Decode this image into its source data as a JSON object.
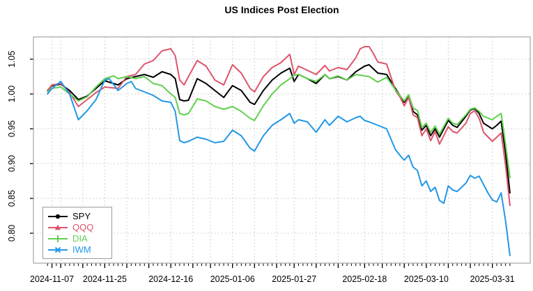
{
  "page": {
    "title": "US Indices Post Election"
  },
  "chart_data": {
    "type": "line",
    "title": "US Indices Post Election",
    "x_axis": {
      "unit": "trading days (index 0 = 2024-11-06)",
      "xlim": [
        -3.2,
        109.6
      ],
      "total_days": 105,
      "major_ticks": [
        {
          "day": 1,
          "label": "2024-11-07"
        },
        {
          "day": 13,
          "label": "2024-11-25"
        },
        {
          "day": 28,
          "label": "2024-12-16"
        },
        {
          "day": 42,
          "label": "2025-01-06"
        },
        {
          "day": 56,
          "label": "2025-01-27"
        },
        {
          "day": 72,
          "label": "2025-02-18"
        },
        {
          "day": 86,
          "label": "2025-03-10"
        },
        {
          "day": 101,
          "label": "2025-03-31"
        }
      ],
      "week_tick_days": [
        1,
        3,
        8,
        13,
        18,
        23,
        28,
        33,
        37,
        42,
        47,
        52,
        56,
        61,
        66,
        72,
        76,
        81,
        86,
        91,
        96,
        101
      ]
    },
    "y_axis": {
      "ylim": [
        0.757,
        1.082
      ],
      "ticks": [
        0.8,
        0.85,
        0.9,
        0.95,
        1.0,
        1.05
      ],
      "tick_labels": [
        "0.80",
        "0.85",
        "0.90",
        "0.95",
        "1.00",
        "1.05"
      ]
    },
    "grid": {
      "on": true,
      "color": "#d3d3d3",
      "dash": "2,3"
    },
    "legend_position": "bottom-left",
    "series": [
      {
        "name": "SPY",
        "color": "#000000",
        "marker": "circle",
        "points": [
          [
            0,
            1.005
          ],
          [
            1,
            1.012
          ],
          [
            3,
            1.014
          ],
          [
            5,
            1.005
          ],
          [
            7,
            0.992
          ],
          [
            9,
            0.997
          ],
          [
            11,
            1.008
          ],
          [
            13,
            1.019
          ],
          [
            16,
            1.013
          ],
          [
            18,
            1.022
          ],
          [
            20,
            1.025
          ],
          [
            22,
            1.028
          ],
          [
            24,
            1.024
          ],
          [
            26,
            1.032
          ],
          [
            28,
            1.028
          ],
          [
            29,
            1.022
          ],
          [
            30,
            0.992
          ],
          [
            31,
            0.99
          ],
          [
            32,
            0.991
          ],
          [
            34,
            1.022
          ],
          [
            36,
            1.015
          ],
          [
            38,
            1.005
          ],
          [
            40,
            0.995
          ],
          [
            42,
            1.012
          ],
          [
            44,
            1.005
          ],
          [
            46,
            0.988
          ],
          [
            47,
            0.985
          ],
          [
            49,
            1.005
          ],
          [
            51,
            1.02
          ],
          [
            53,
            1.03
          ],
          [
            55,
            1.037
          ],
          [
            56,
            1.018
          ],
          [
            57,
            1.028
          ],
          [
            59,
            1.022
          ],
          [
            61,
            1.015
          ],
          [
            63,
            1.028
          ],
          [
            64,
            1.022
          ],
          [
            66,
            1.025
          ],
          [
            68,
            1.02
          ],
          [
            70,
            1.032
          ],
          [
            72,
            1.04
          ],
          [
            73,
            1.042
          ],
          [
            75,
            1.03
          ],
          [
            77,
            1.028
          ],
          [
            79,
            1.008
          ],
          [
            80,
            0.998
          ],
          [
            81,
            0.988
          ],
          [
            82,
            0.998
          ],
          [
            83,
            0.975
          ],
          [
            84,
            0.97
          ],
          [
            85,
            0.948
          ],
          [
            86,
            0.955
          ],
          [
            87,
            0.94
          ],
          [
            88,
            0.95
          ],
          [
            89,
            0.938
          ],
          [
            91,
            0.962
          ],
          [
            92,
            0.955
          ],
          [
            93,
            0.952
          ],
          [
            95,
            0.968
          ],
          [
            96,
            0.977
          ],
          [
            97,
            0.979
          ],
          [
            98,
            0.972
          ],
          [
            99,
            0.958
          ],
          [
            101,
            0.95
          ],
          [
            102,
            0.955
          ],
          [
            103,
            0.961
          ],
          [
            104,
            0.915
          ],
          [
            105,
            0.858
          ]
        ]
      },
      {
        "name": "QQQ",
        "color": "#DF536B",
        "marker": "triangle",
        "points": [
          [
            0,
            1.005
          ],
          [
            1,
            1.013
          ],
          [
            3,
            1.015
          ],
          [
            5,
            1.002
          ],
          [
            7,
            0.982
          ],
          [
            9,
            0.992
          ],
          [
            11,
            1.002
          ],
          [
            13,
            1.01
          ],
          [
            16,
            1.008
          ],
          [
            18,
            1.025
          ],
          [
            20,
            1.028
          ],
          [
            22,
            1.043
          ],
          [
            24,
            1.048
          ],
          [
            26,
            1.062
          ],
          [
            28,
            1.065
          ],
          [
            29,
            1.055
          ],
          [
            30,
            1.02
          ],
          [
            31,
            1.013
          ],
          [
            32,
            1.025
          ],
          [
            34,
            1.048
          ],
          [
            36,
            1.04
          ],
          [
            38,
            1.02
          ],
          [
            40,
            1.013
          ],
          [
            42,
            1.042
          ],
          [
            44,
            1.03
          ],
          [
            46,
            1.008
          ],
          [
            47,
            1.003
          ],
          [
            49,
            1.025
          ],
          [
            51,
            1.038
          ],
          [
            53,
            1.045
          ],
          [
            55,
            1.057
          ],
          [
            56,
            1.028
          ],
          [
            57,
            1.04
          ],
          [
            59,
            1.034
          ],
          [
            61,
            1.028
          ],
          [
            63,
            1.041
          ],
          [
            64,
            1.033
          ],
          [
            66,
            1.038
          ],
          [
            68,
            1.035
          ],
          [
            70,
            1.052
          ],
          [
            71,
            1.065
          ],
          [
            72,
            1.068
          ],
          [
            73,
            1.068
          ],
          [
            74,
            1.058
          ],
          [
            75,
            1.046
          ],
          [
            77,
            1.043
          ],
          [
            79,
            1.005
          ],
          [
            80,
            0.996
          ],
          [
            81,
            0.983
          ],
          [
            82,
            0.995
          ],
          [
            83,
            0.97
          ],
          [
            84,
            0.966
          ],
          [
            85,
            0.94
          ],
          [
            86,
            0.95
          ],
          [
            87,
            0.933
          ],
          [
            88,
            0.946
          ],
          [
            89,
            0.928
          ],
          [
            91,
            0.953
          ],
          [
            92,
            0.946
          ],
          [
            93,
            0.944
          ],
          [
            95,
            0.958
          ],
          [
            96,
            0.972
          ],
          [
            97,
            0.976
          ],
          [
            98,
            0.965
          ],
          [
            99,
            0.945
          ],
          [
            101,
            0.932
          ],
          [
            102,
            0.938
          ],
          [
            103,
            0.944
          ],
          [
            104,
            0.898
          ],
          [
            105,
            0.84
          ]
        ]
      },
      {
        "name": "DIA",
        "color": "#61D04F",
        "marker": "plus",
        "points": [
          [
            0,
            1.003
          ],
          [
            1,
            1.008
          ],
          [
            3,
            1.01
          ],
          [
            5,
            1.0
          ],
          [
            7,
            0.99
          ],
          [
            9,
            0.996
          ],
          [
            11,
            1.01
          ],
          [
            13,
            1.022
          ],
          [
            15,
            1.026
          ],
          [
            16,
            1.022
          ],
          [
            18,
            1.025
          ],
          [
            20,
            1.022
          ],
          [
            22,
            1.025
          ],
          [
            24,
            1.015
          ],
          [
            26,
            1.012
          ],
          [
            28,
            1.0
          ],
          [
            29,
            0.995
          ],
          [
            30,
            0.972
          ],
          [
            31,
            0.97
          ],
          [
            32,
            0.972
          ],
          [
            34,
            0.993
          ],
          [
            36,
            0.99
          ],
          [
            38,
            0.982
          ],
          [
            40,
            0.978
          ],
          [
            42,
            0.982
          ],
          [
            44,
            0.975
          ],
          [
            46,
            0.965
          ],
          [
            47,
            0.962
          ],
          [
            49,
            0.983
          ],
          [
            51,
            1.0
          ],
          [
            53,
            1.013
          ],
          [
            55,
            1.022
          ],
          [
            56,
            1.027
          ],
          [
            57,
            1.028
          ],
          [
            59,
            1.022
          ],
          [
            61,
            1.018
          ],
          [
            63,
            1.028
          ],
          [
            64,
            1.022
          ],
          [
            66,
            1.026
          ],
          [
            68,
            1.02
          ],
          [
            70,
            1.028
          ],
          [
            72,
            1.026
          ],
          [
            73,
            1.025
          ],
          [
            75,
            1.017
          ],
          [
            77,
            1.024
          ],
          [
            79,
            1.006
          ],
          [
            80,
            0.998
          ],
          [
            81,
            0.99
          ],
          [
            82,
            0.999
          ],
          [
            83,
            0.98
          ],
          [
            84,
            0.976
          ],
          [
            85,
            0.952
          ],
          [
            86,
            0.958
          ],
          [
            87,
            0.945
          ],
          [
            88,
            0.954
          ],
          [
            89,
            0.942
          ],
          [
            91,
            0.965
          ],
          [
            92,
            0.958
          ],
          [
            93,
            0.956
          ],
          [
            95,
            0.97
          ],
          [
            96,
            0.978
          ],
          [
            97,
            0.98
          ],
          [
            98,
            0.975
          ],
          [
            99,
            0.968
          ],
          [
            101,
            0.963
          ],
          [
            102,
            0.968
          ],
          [
            103,
            0.972
          ],
          [
            104,
            0.928
          ],
          [
            105,
            0.88
          ]
        ]
      },
      {
        "name": "IWM",
        "color": "#2297E6",
        "marker": "asterisk",
        "points": [
          [
            0,
            1.0
          ],
          [
            1,
            1.008
          ],
          [
            3,
            1.018
          ],
          [
            5,
            1.0
          ],
          [
            7,
            0.963
          ],
          [
            9,
            0.976
          ],
          [
            11,
            0.992
          ],
          [
            13,
            1.02
          ],
          [
            14,
            1.022
          ],
          [
            16,
            1.005
          ],
          [
            18,
            1.015
          ],
          [
            19,
            1.018
          ],
          [
            20,
            1.008
          ],
          [
            22,
            1.003
          ],
          [
            24,
            0.998
          ],
          [
            26,
            0.99
          ],
          [
            28,
            0.988
          ],
          [
            29,
            0.975
          ],
          [
            30,
            0.933
          ],
          [
            31,
            0.93
          ],
          [
            32,
            0.932
          ],
          [
            34,
            0.938
          ],
          [
            36,
            0.935
          ],
          [
            38,
            0.93
          ],
          [
            40,
            0.932
          ],
          [
            42,
            0.948
          ],
          [
            44,
            0.94
          ],
          [
            46,
            0.922
          ],
          [
            47,
            0.918
          ],
          [
            49,
            0.94
          ],
          [
            51,
            0.955
          ],
          [
            53,
            0.963
          ],
          [
            55,
            0.972
          ],
          [
            56,
            0.958
          ],
          [
            57,
            0.963
          ],
          [
            59,
            0.96
          ],
          [
            61,
            0.945
          ],
          [
            63,
            0.963
          ],
          [
            64,
            0.955
          ],
          [
            66,
            0.968
          ],
          [
            68,
            0.96
          ],
          [
            70,
            0.966
          ],
          [
            71,
            0.968
          ],
          [
            72,
            0.962
          ],
          [
            73,
            0.96
          ],
          [
            75,
            0.955
          ],
          [
            77,
            0.95
          ],
          [
            79,
            0.92
          ],
          [
            80,
            0.912
          ],
          [
            81,
            0.905
          ],
          [
            82,
            0.912
          ],
          [
            83,
            0.895
          ],
          [
            84,
            0.89
          ],
          [
            85,
            0.868
          ],
          [
            86,
            0.875
          ],
          [
            87,
            0.86
          ],
          [
            88,
            0.866
          ],
          [
            89,
            0.847
          ],
          [
            90,
            0.843
          ],
          [
            91,
            0.868
          ],
          [
            92,
            0.862
          ],
          [
            93,
            0.86
          ],
          [
            95,
            0.872
          ],
          [
            96,
            0.883
          ],
          [
            97,
            0.879
          ],
          [
            98,
            0.882
          ],
          [
            99,
            0.87
          ],
          [
            100,
            0.858
          ],
          [
            101,
            0.848
          ],
          [
            102,
            0.845
          ],
          [
            103,
            0.858
          ],
          [
            104,
            0.818
          ],
          [
            105,
            0.768
          ]
        ]
      }
    ]
  },
  "legend": {
    "items": [
      {
        "label": "SPY"
      },
      {
        "label": "QQQ"
      },
      {
        "label": "DIA"
      },
      {
        "label": "IWM"
      }
    ]
  }
}
